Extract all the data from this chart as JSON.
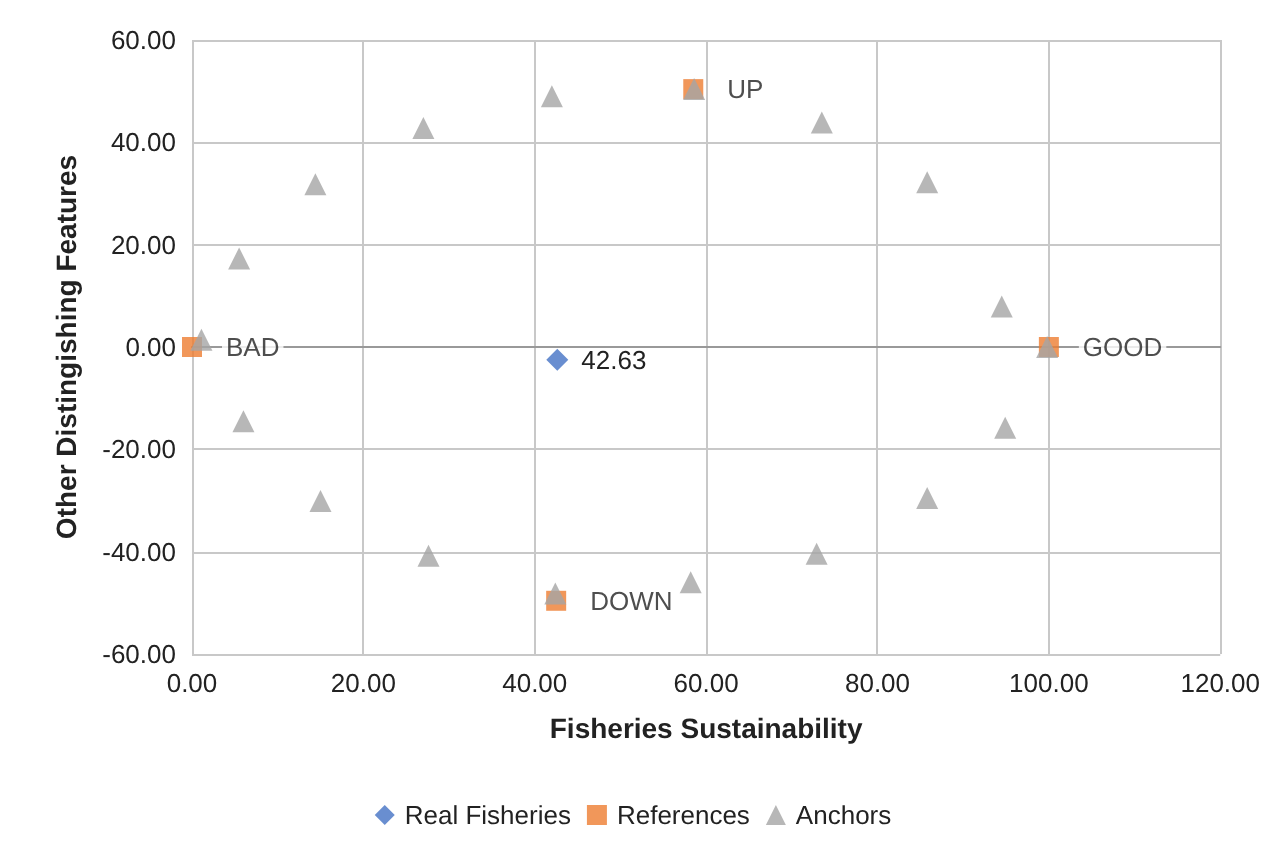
{
  "chart_data": {
    "type": "scatter",
    "xlabel": "Fisheries Sustainability",
    "ylabel": "Other Distingishing Features",
    "xlim": [
      0,
      120
    ],
    "xticks": [
      {
        "value": 0,
        "label": "0.00"
      },
      {
        "value": 20,
        "label": "20.00"
      },
      {
        "value": 40,
        "label": "40.00"
      },
      {
        "value": 60,
        "label": "60.00"
      },
      {
        "value": 80,
        "label": "80.00"
      },
      {
        "value": 100,
        "label": "100.00"
      },
      {
        "value": 120,
        "label": "120.00"
      }
    ],
    "ylim": [
      -60,
      60
    ],
    "yticks": [
      {
        "value": -60,
        "label": "-60.00"
      },
      {
        "value": -40,
        "label": "-40.00"
      },
      {
        "value": -20,
        "label": "-20.00"
      },
      {
        "value": 0,
        "label": "0.00"
      },
      {
        "value": 20,
        "label": "20.00"
      },
      {
        "value": 40,
        "label": "40.00"
      },
      {
        "value": 60,
        "label": "60.00"
      }
    ],
    "grid": true,
    "legend": "bottom",
    "annotations": [
      {
        "text": "42.63",
        "x": 42.63,
        "y": -2.5
      }
    ],
    "series": [
      {
        "name": "Real Fisheries",
        "color": "#4472c4",
        "marker": "diamond",
        "x": [
          42.63
        ],
        "values": [
          -2.5
        ]
      },
      {
        "name": "References",
        "color": "#ed7d31",
        "marker": "square",
        "x": [
          0,
          100,
          58.5,
          42.5
        ],
        "values": [
          0,
          0,
          50.4,
          -49.6
        ],
        "value_labels": [
          "BAD",
          "GOOD",
          "UP",
          "DOWN"
        ]
      },
      {
        "name": "Anchors",
        "color": "#a5a5a5",
        "marker": "triangle",
        "x": [
          1.1,
          5.5,
          14.4,
          27,
          42,
          58.6,
          73.5,
          85.8,
          94.5,
          99.8,
          94.9,
          85.8,
          72.9,
          58.2,
          42.4,
          27.6,
          15,
          6
        ],
        "values": [
          1.4,
          17.3,
          31.8,
          42.8,
          49,
          50.4,
          43.9,
          32.2,
          7.9,
          0,
          -15.8,
          -29.5,
          -40.4,
          -46,
          -48.2,
          -40.8,
          -30.1,
          -14.5
        ]
      }
    ]
  }
}
